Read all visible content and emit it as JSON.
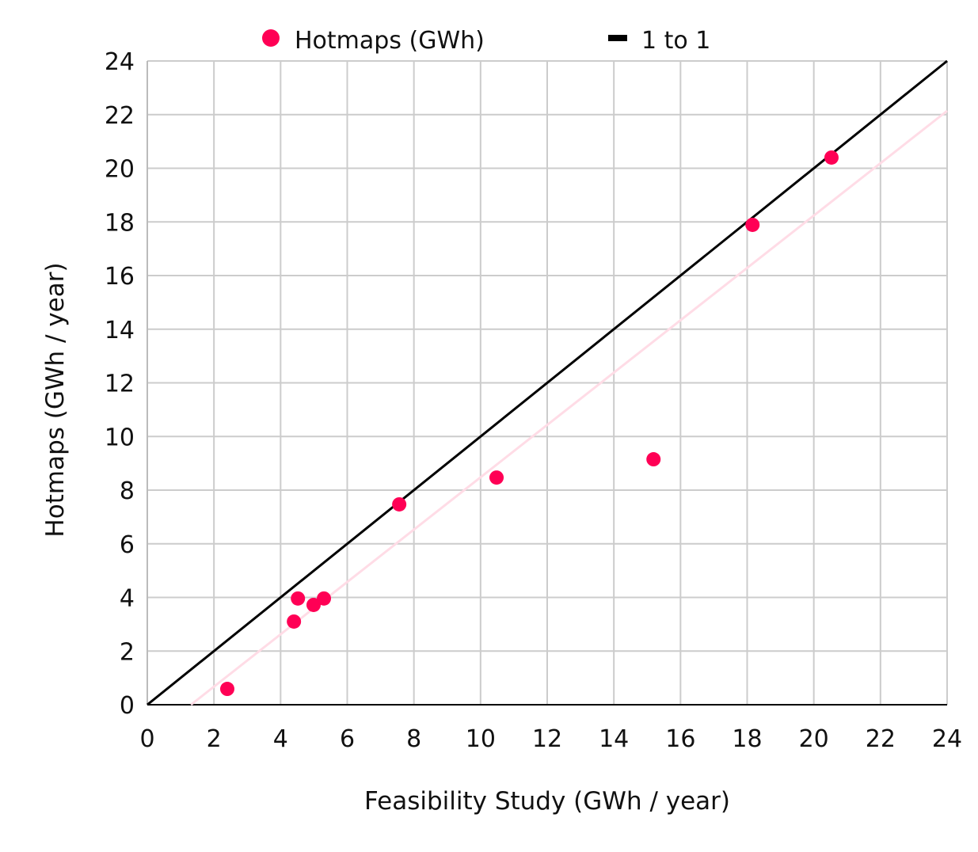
{
  "chart_data": {
    "type": "scatter",
    "title": "",
    "xlabel": "Feasibility Study (GWh / year)",
    "ylabel": "Hotmaps (GWh / year)",
    "xlim": [
      0,
      24
    ],
    "ylim": [
      0,
      24
    ],
    "xticks": [
      0,
      2,
      4,
      6,
      8,
      10,
      12,
      14,
      16,
      18,
      20,
      22,
      24
    ],
    "yticks": [
      0,
      2,
      4,
      6,
      8,
      10,
      12,
      14,
      16,
      18,
      20,
      22,
      24
    ],
    "grid": true,
    "legend_position": "top",
    "series": [
      {
        "name": "Hotmaps (GWh)",
        "type": "scatter",
        "color": "#ff0055",
        "x": [
          2.4,
          4.4,
          4.52,
          4.99,
          5.3,
          7.56,
          10.48,
          15.19,
          18.16,
          20.53
        ],
        "y": [
          0.59,
          3.1,
          3.96,
          3.72,
          3.96,
          7.47,
          8.47,
          9.15,
          17.89,
          20.4
        ]
      },
      {
        "name": "1 to 1",
        "type": "line",
        "color": "#000000",
        "x": [
          0,
          24
        ],
        "y": [
          0,
          24
        ]
      }
    ],
    "trendline": {
      "color": "#ffdce6",
      "x": [
        1.31,
        24
      ],
      "y": [
        0,
        22.14
      ]
    }
  }
}
